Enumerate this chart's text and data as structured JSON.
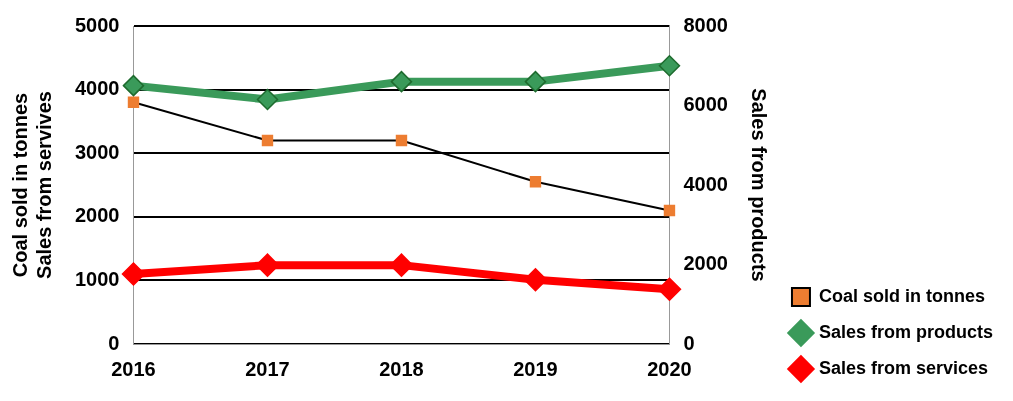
{
  "chart_data": {
    "type": "line",
    "categories": [
      "2016",
      "2017",
      "2018",
      "2019",
      "2020"
    ],
    "ylabel": "Coal sold in tonnes\nSales from servives",
    "y2label": "Sales from products",
    "ylim": [
      0,
      5000
    ],
    "yticks": [
      0,
      1000,
      2000,
      3000,
      4000,
      5000
    ],
    "y2lim": [
      0,
      8000
    ],
    "y2ticks": [
      0,
      2000,
      4000,
      6000,
      8000
    ],
    "grid": "y",
    "legend": "bottom right",
    "series": [
      {
        "name": "Coal sold in tonnes",
        "color": "#000000",
        "colors": [
          "#ed7d31",
          "#ed7d31",
          "#ed7d31",
          "#ed7d31",
          "#ed7d31"
        ],
        "marker": "square",
        "values": [
          3800,
          3200,
          3200,
          2550,
          2100
        ]
      },
      {
        "name": "Sales from products",
        "color": "#3a9a5a",
        "axis": "y2",
        "marker": "diamond",
        "values": [
          6500,
          6150,
          6600,
          6600,
          7000
        ]
      },
      {
        "name": "Sales from services",
        "color": "#ff0000",
        "marker": "diamond",
        "values": [
          1100,
          1240,
          1240,
          1010,
          860
        ]
      }
    ]
  }
}
